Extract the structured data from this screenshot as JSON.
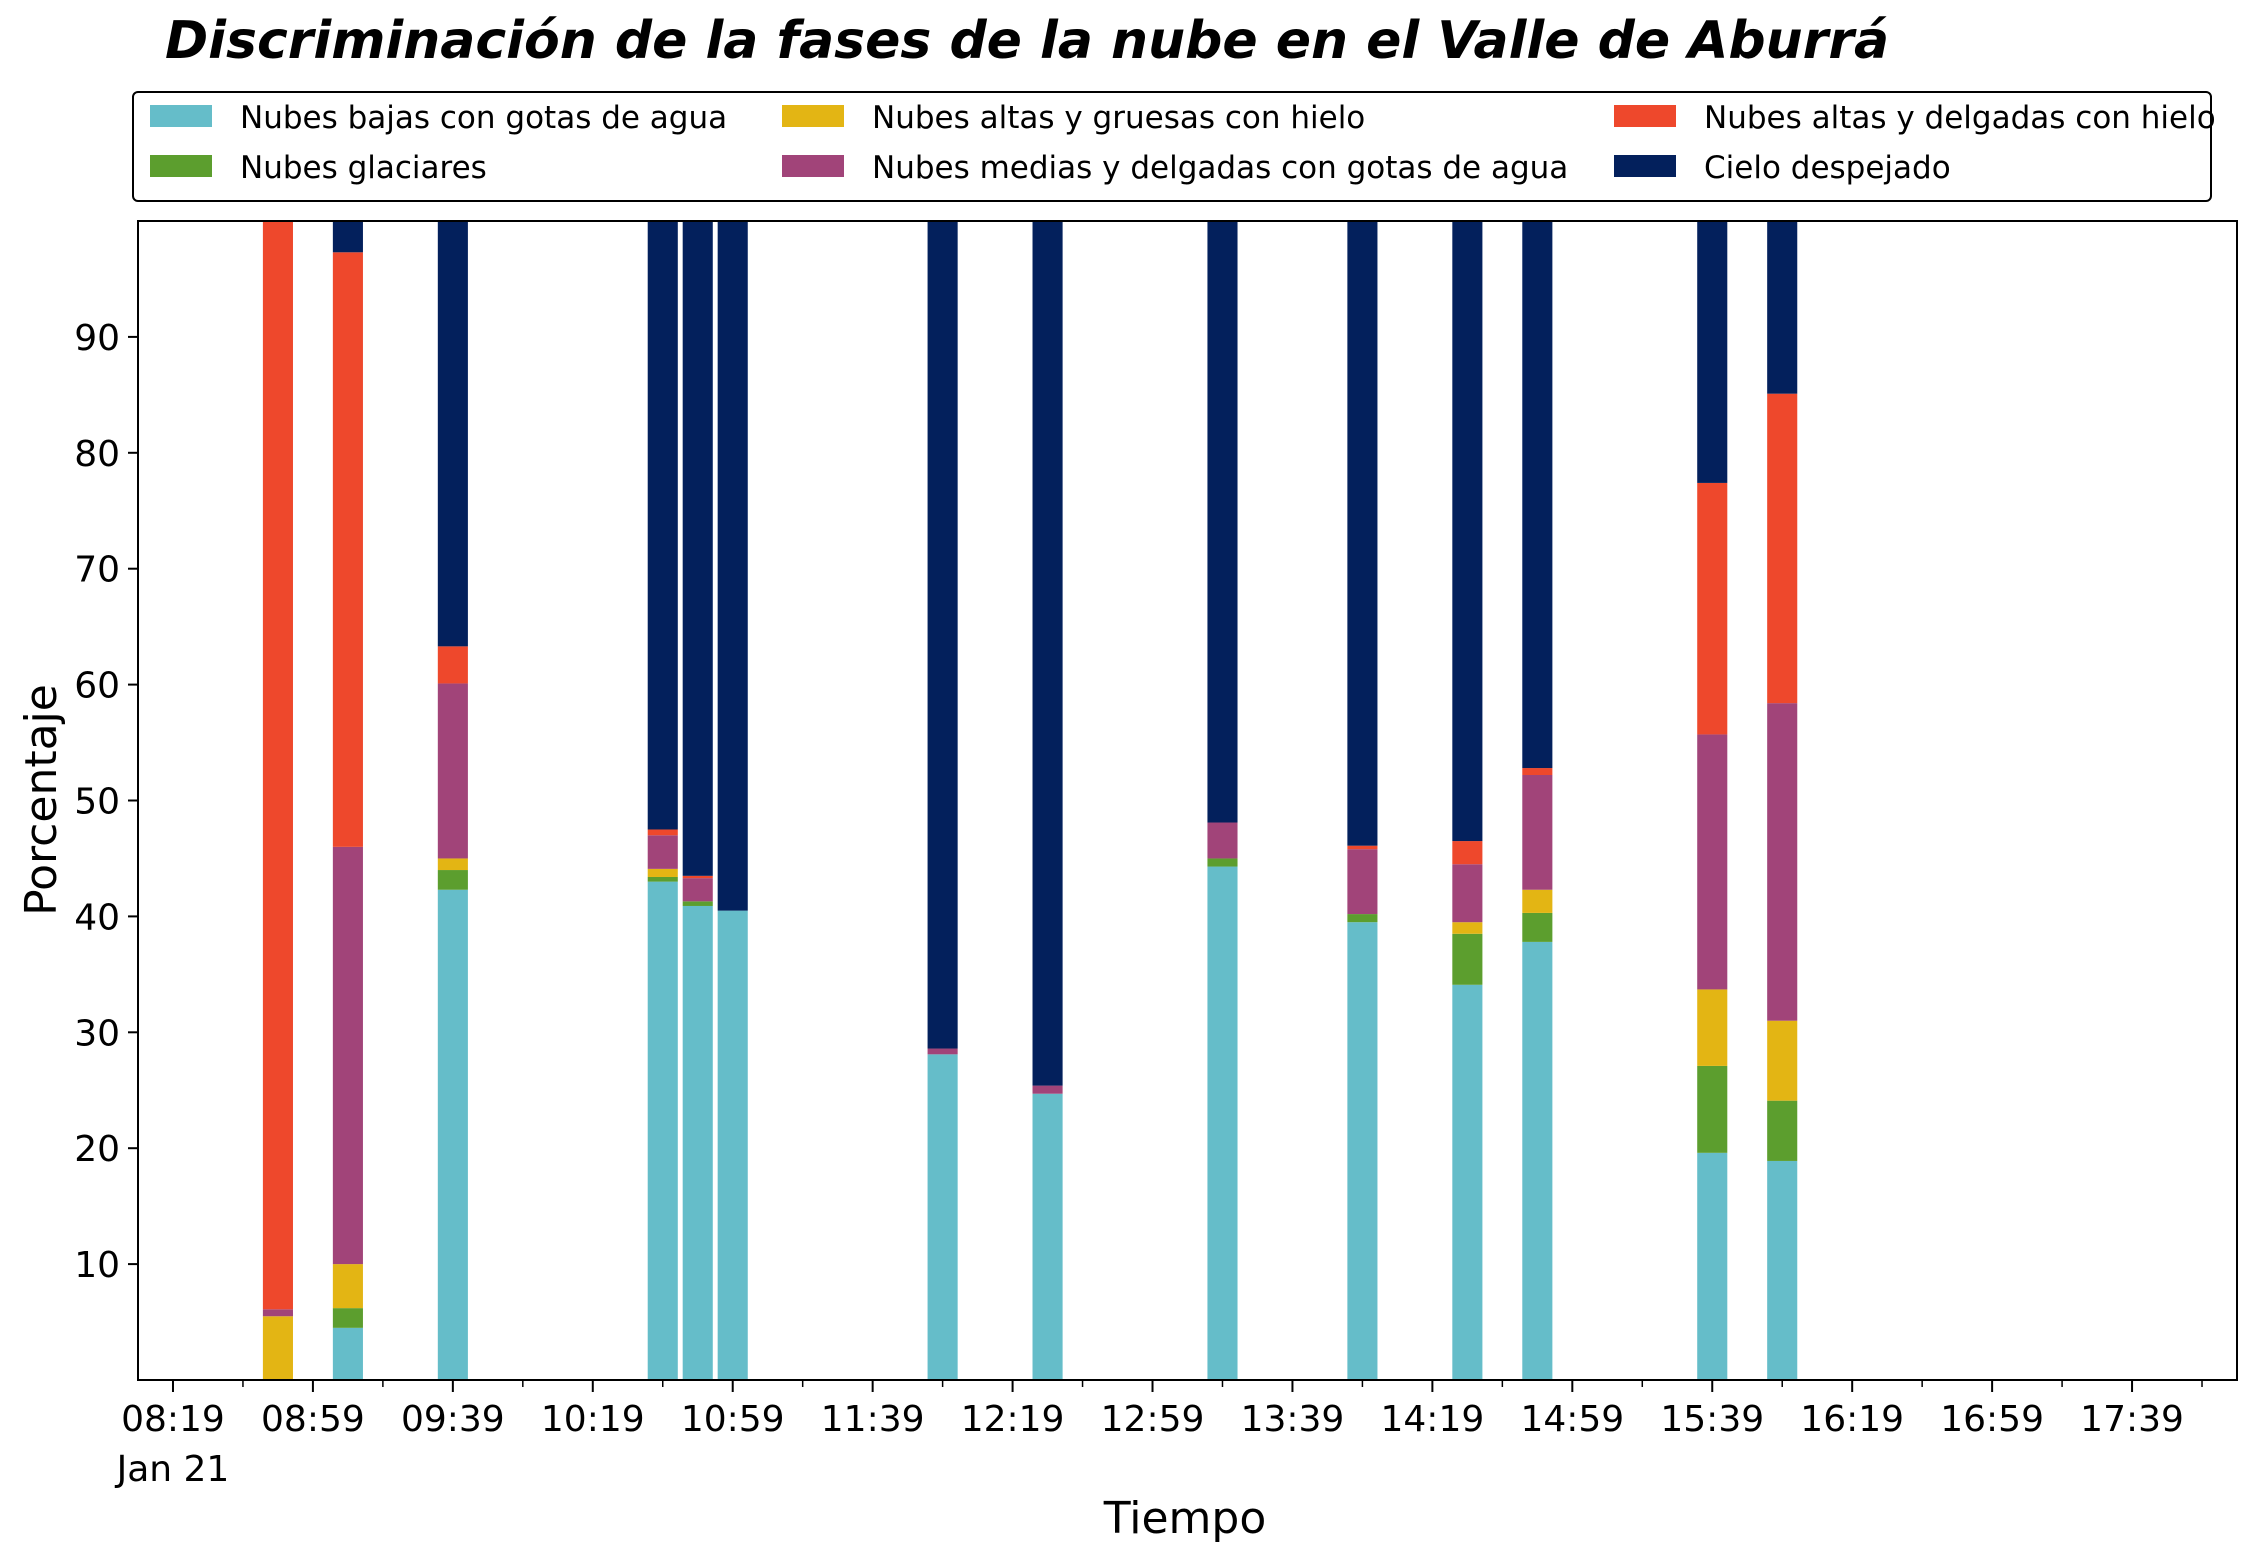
{
  "chart_data": {
    "type": "bar",
    "stacked": true,
    "title": "Discriminación de la fases de la nube en el Valle de Aburrá",
    "xlabel": "Tiempo",
    "ylabel": "Porcentaje",
    "ylim": [
      0,
      100
    ],
    "yticks": [
      10,
      20,
      30,
      40,
      50,
      60,
      70,
      80,
      90
    ],
    "xlim": [
      "08:09",
      "18:09"
    ],
    "xticks_major": [
      {
        "time": "08:19",
        "label": "08:19",
        "sublabel": "Jan 21"
      },
      {
        "time": "08:59",
        "label": "08:59"
      },
      {
        "time": "09:39",
        "label": "09:39"
      },
      {
        "time": "10:19",
        "label": "10:19"
      },
      {
        "time": "10:59",
        "label": "10:59"
      },
      {
        "time": "11:39",
        "label": "11:39"
      },
      {
        "time": "12:19",
        "label": "12:19"
      },
      {
        "time": "12:59",
        "label": "12:59"
      },
      {
        "time": "13:39",
        "label": "13:39"
      },
      {
        "time": "14:19",
        "label": "14:19"
      },
      {
        "time": "14:59",
        "label": "14:59"
      },
      {
        "time": "15:39",
        "label": "15:39"
      },
      {
        "time": "16:19",
        "label": "16:19"
      },
      {
        "time": "16:59",
        "label": "16:59"
      },
      {
        "time": "17:39",
        "label": "17:39"
      }
    ],
    "xticks_minor": [
      "08:39",
      "09:19",
      "09:59",
      "10:39",
      "11:19",
      "11:59",
      "12:39",
      "13:19",
      "13:59",
      "14:39",
      "15:19",
      "15:59",
      "16:39",
      "17:19",
      "17:59"
    ],
    "grid": false,
    "legend_position": "top",
    "legend_columns": 3,
    "bar_width_minutes": 8.6,
    "x": [
      "08:49",
      "09:09",
      "09:39",
      "10:39",
      "10:49",
      "10:59",
      "11:59",
      "12:29",
      "13:19",
      "13:59",
      "14:29",
      "14:49",
      "15:39",
      "15:59"
    ],
    "series": [
      {
        "name": "Nubes bajas con gotas de agua",
        "color": "#65BDC9",
        "values": [
          0,
          4.5,
          42.3,
          43.0,
          40.9,
          40.5,
          28.1,
          24.7,
          44.3,
          39.5,
          34.1,
          37.8,
          19.6,
          18.9
        ]
      },
      {
        "name": "Nubes glaciares",
        "color": "#5C9E2E",
        "values": [
          0,
          1.7,
          1.7,
          0.4,
          0.4,
          0,
          0,
          0,
          0.7,
          0.7,
          4.4,
          2.5,
          7.5,
          5.2
        ]
      },
      {
        "name": "Nubes altas y gruesas con hielo",
        "color": "#E3B514",
        "values": [
          5.5,
          3.8,
          1.0,
          0.7,
          0,
          0,
          0,
          0,
          0,
          0,
          1.0,
          2.0,
          6.6,
          6.9
        ]
      },
      {
        "name": "Nubes medias y delgadas con gotas de agua",
        "color": "#A14479",
        "values": [
          0.6,
          36.0,
          15.1,
          2.9,
          2.0,
          0,
          0.5,
          0.7,
          3.1,
          5.6,
          5.0,
          9.9,
          22.0,
          27.4
        ]
      },
      {
        "name": "Nubes altas y delgadas con hielo",
        "color": "#EE482C",
        "values": [
          93.9,
          51.3,
          3.2,
          0.5,
          0.2,
          0,
          0,
          0,
          0,
          0.3,
          2.0,
          0.6,
          21.7,
          26.7
        ]
      },
      {
        "name": "Cielo despejado",
        "color": "#03205C",
        "values": [
          0,
          2.7,
          36.7,
          52.5,
          56.5,
          59.5,
          71.4,
          74.6,
          51.9,
          53.9,
          53.5,
          47.2,
          22.6,
          14.9
        ]
      }
    ]
  }
}
